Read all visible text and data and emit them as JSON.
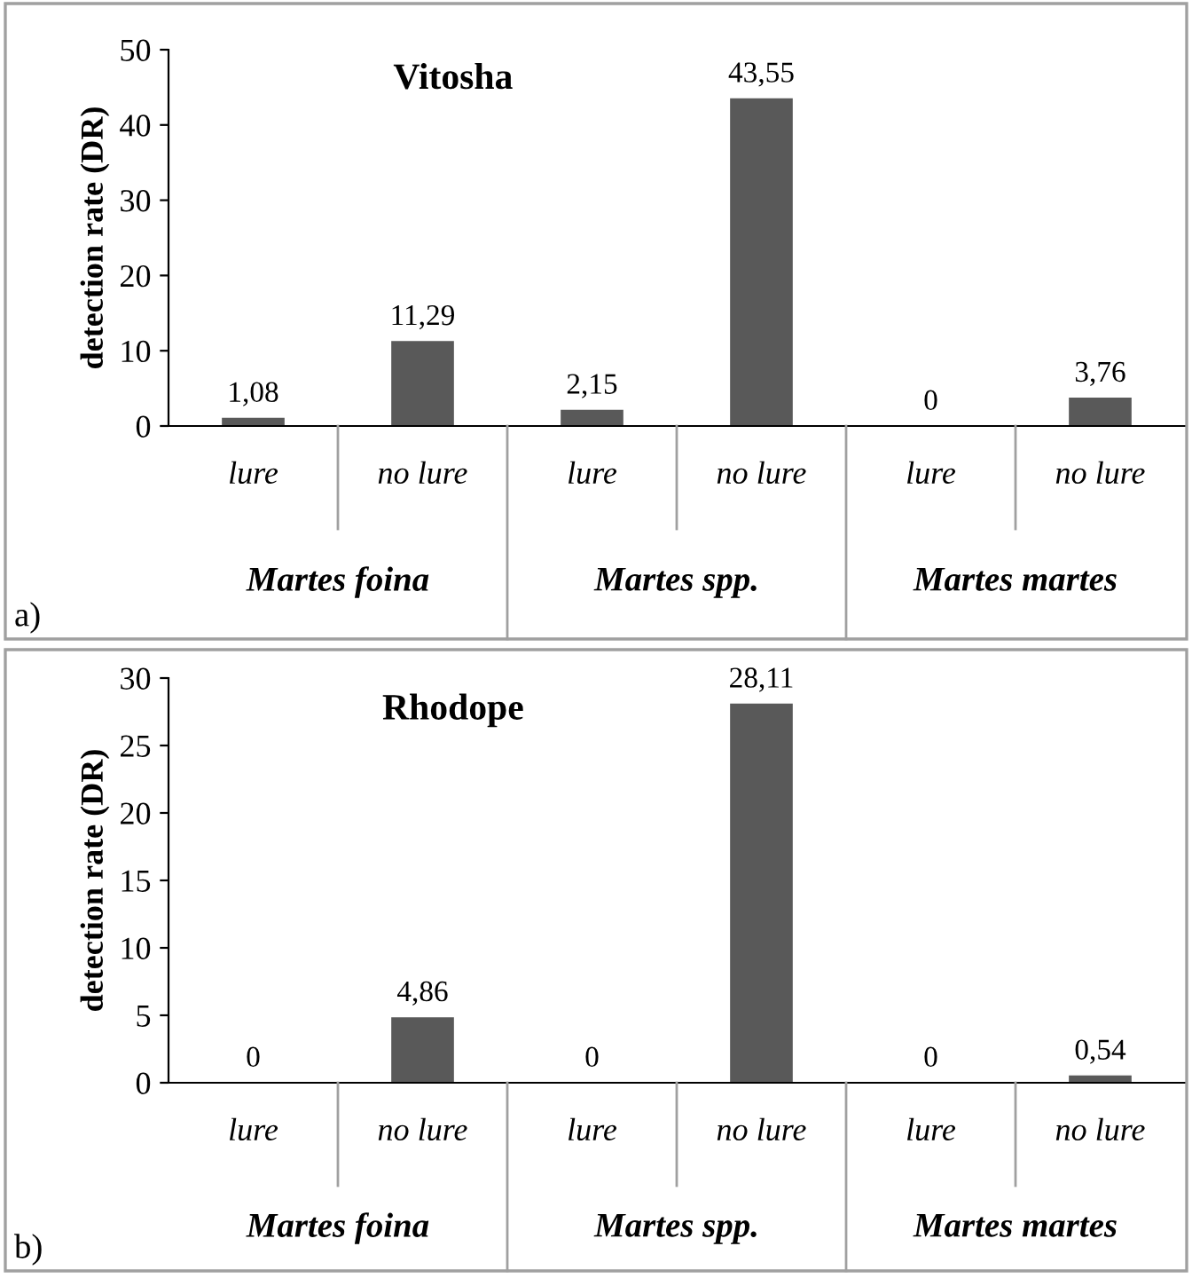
{
  "chart_data": [
    {
      "type": "bar",
      "title": "Vitosha",
      "ylabel": "detection rate (DR)",
      "categories": [
        "lure",
        "no lure",
        "lure",
        "no lure",
        "lure",
        "no lure"
      ],
      "values": [
        1.08,
        11.29,
        2.15,
        43.55,
        0,
        3.76
      ],
      "value_labels": [
        "1,08",
        "11,29",
        "2,15",
        "43,55",
        "0",
        "3,76"
      ],
      "color": "#595959",
      "ylim": [
        0,
        50
      ],
      "yticks": [
        0,
        10,
        20,
        30,
        40,
        50
      ],
      "annotations": [
        "Martes foina",
        "Martes spp.",
        "Martes martes",
        "a)"
      ]
    },
    {
      "type": "bar",
      "title": "Rhodope",
      "ylabel": "detection rate (DR)",
      "categories": [
        "lure",
        "no lure",
        "lure",
        "no lure",
        "lure",
        "no lure"
      ],
      "values": [
        0,
        4.86,
        0,
        28.11,
        0,
        0.54
      ],
      "value_labels": [
        "0",
        "4,86",
        "0",
        "28,11",
        "0",
        "0,54"
      ],
      "color": "#595959",
      "ylim": [
        0,
        30
      ],
      "yticks": [
        0,
        5,
        10,
        15,
        20,
        25,
        30
      ],
      "annotations": [
        "Martes foina",
        "Martes spp.",
        "Martes martes",
        "b)"
      ]
    }
  ]
}
